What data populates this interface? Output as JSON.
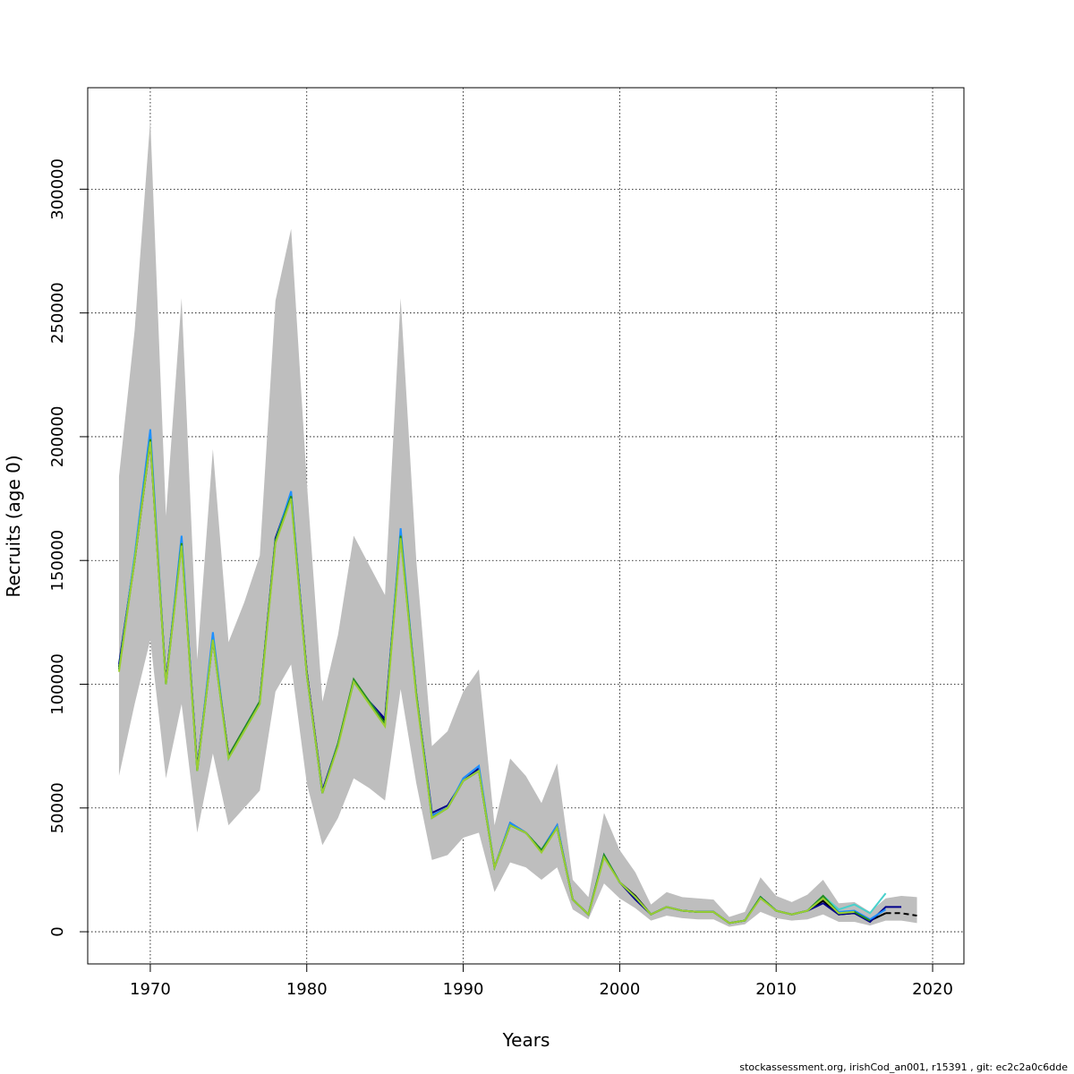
{
  "chart_data": {
    "type": "line",
    "title": "",
    "xlabel": "Years",
    "ylabel": "Recruits (age 0)",
    "xlim": [
      1966,
      2022
    ],
    "ylim": [
      -13000,
      341000
    ],
    "x_ticks": [
      1970,
      1980,
      1990,
      2000,
      2010,
      2020
    ],
    "y_ticks": [
      0,
      50000,
      100000,
      150000,
      200000,
      250000,
      300000
    ],
    "x_tick_labels": [
      "1970",
      "1980",
      "1990",
      "2000",
      "2010",
      "2020"
    ],
    "y_tick_labels": [
      "0",
      "50000",
      "100000",
      "150000",
      "200000",
      "250000",
      "300000"
    ],
    "grid": true,
    "legend": "none",
    "footer": "stockassessment.org, irishCod_an001, r15391 , git: ec2c2a0c6dde",
    "confidence_band": {
      "color": "#bebebe",
      "x": [
        1968,
        1969,
        1970,
        1971,
        1972,
        1973,
        1974,
        1975,
        1976,
        1977,
        1978,
        1979,
        1980,
        1981,
        1982,
        1983,
        1984,
        1985,
        1986,
        1987,
        1988,
        1989,
        1990,
        1991,
        1992,
        1993,
        1994,
        1995,
        1996,
        1997,
        1998,
        1999,
        2000,
        2001,
        2002,
        2003,
        2004,
        2005,
        2006,
        2007,
        2008,
        2009,
        2010,
        2011,
        2012,
        2013,
        2014,
        2015,
        2016,
        2017,
        2018,
        2019
      ],
      "lower": [
        63000,
        92000,
        118000,
        62000,
        92000,
        40000,
        72000,
        43000,
        50000,
        57000,
        97000,
        108000,
        60000,
        35000,
        46000,
        62000,
        58000,
        53000,
        98000,
        60000,
        29000,
        31000,
        38000,
        40000,
        16000,
        28000,
        26000,
        21000,
        26000,
        9000,
        5000,
        19500,
        13500,
        9500,
        4500,
        6500,
        5500,
        5000,
        5000,
        2000,
        3000,
        8000,
        5500,
        4500,
        5000,
        7000,
        4000,
        4000,
        2500,
        4500,
        4500,
        3500
      ],
      "upper": [
        184000,
        243000,
        328000,
        168000,
        256000,
        110000,
        195000,
        117000,
        133000,
        152000,
        255000,
        284000,
        182000,
        93000,
        120000,
        160000,
        148000,
        136000,
        256000,
        150000,
        75000,
        81000,
        97000,
        106000,
        43000,
        70000,
        63000,
        52000,
        68000,
        21000,
        14000,
        48000,
        33000,
        24000,
        11000,
        16000,
        14000,
        13500,
        13000,
        6000,
        8000,
        22000,
        14500,
        12000,
        15000,
        21000,
        11500,
        12000,
        8000,
        13500,
        14500,
        14000
      ]
    },
    "series": [
      {
        "color": "#000000",
        "dashed_from": 2017,
        "x": [
          1968,
          1969,
          1970,
          1971,
          1972,
          1973,
          1974,
          1975,
          1976,
          1977,
          1978,
          1979,
          1980,
          1981,
          1982,
          1983,
          1984,
          1985,
          1986,
          1987,
          1988,
          1989,
          1990,
          1991,
          1992,
          1993,
          1994,
          1995,
          1996,
          1997,
          1998,
          1999,
          2000,
          2001,
          2002,
          2003,
          2004,
          2005,
          2006,
          2007,
          2008,
          2009,
          2010,
          2011,
          2012,
          2013,
          2014,
          2015,
          2016,
          2017,
          2018,
          2019
        ],
        "values": [
          107000,
          150000,
          198000,
          101000,
          157000,
          66000,
          118000,
          71000,
          82000,
          93000,
          158000,
          176000,
          105000,
          56000,
          76000,
          101000,
          93000,
          85000,
          160000,
          96000,
          47000,
          50000,
          61000,
          65000,
          26000,
          43000,
          40000,
          33000,
          42000,
          13000,
          7000,
          31000,
          20000,
          14500,
          7000,
          10000,
          8500,
          8000,
          8000,
          3500,
          4500,
          14000,
          8500,
          7000,
          8500,
          12500,
          7000,
          7500,
          4500,
          7500,
          7500,
          6500
        ]
      },
      {
        "color": "#00008b",
        "x": [
          1968,
          1969,
          1970,
          1971,
          1972,
          1973,
          1974,
          1975,
          1976,
          1977,
          1978,
          1979,
          1980,
          1981,
          1982,
          1983,
          1984,
          1985,
          1986,
          1987,
          1988,
          1989,
          1990,
          1991,
          1992,
          1993,
          1994,
          1995,
          1996,
          1997,
          1998,
          1999,
          2000,
          2001,
          2002,
          2003,
          2004,
          2005,
          2006,
          2007,
          2008,
          2009,
          2010,
          2011,
          2012,
          2013,
          2014,
          2015,
          2016,
          2017,
          2018
        ],
        "values": [
          108000,
          151000,
          199000,
          101000,
          158000,
          66000,
          119000,
          71000,
          82000,
          93000,
          159000,
          177000,
          105000,
          57000,
          76000,
          101000,
          93000,
          86000,
          161000,
          96000,
          48000,
          51000,
          61000,
          66000,
          26000,
          44000,
          40000,
          33000,
          43000,
          13000,
          7000,
          31000,
          20000,
          13000,
          7000,
          10000,
          8500,
          8000,
          8000,
          3500,
          4500,
          14000,
          8500,
          7000,
          8500,
          11500,
          7000,
          7500,
          4000,
          10000,
          10000
        ]
      },
      {
        "color": "#1e90ff",
        "x": [
          1968,
          1969,
          1970,
          1971,
          1972,
          1973,
          1974,
          1975,
          1976,
          1977,
          1978,
          1979,
          1980,
          1981,
          1982,
          1983,
          1984,
          1985,
          1986,
          1987,
          1988,
          1989,
          1990,
          1991,
          1992,
          1993,
          1994,
          1995,
          1996,
          1997,
          1998,
          1999,
          2000,
          2001,
          2002,
          2003,
          2004,
          2005,
          2006,
          2007,
          2008,
          2009,
          2010,
          2011,
          2012,
          2013,
          2014,
          2015,
          2016,
          2017
        ],
        "values": [
          106000,
          152000,
          203000,
          100000,
          160000,
          65000,
          121000,
          70000,
          82000,
          93000,
          158000,
          178000,
          104000,
          56000,
          76000,
          101000,
          93000,
          84000,
          163000,
          96000,
          47000,
          50000,
          62000,
          67000,
          26000,
          44000,
          40000,
          33000,
          43000,
          13000,
          7000,
          31000,
          20000,
          14000,
          7000,
          10000,
          8500,
          8000,
          8000,
          3500,
          4500,
          14000,
          8500,
          7000,
          8500,
          14000,
          8000,
          8500,
          5000,
          9000
        ]
      },
      {
        "color": "#48d1cc",
        "x": [
          1968,
          1969,
          1970,
          1971,
          1972,
          1973,
          1974,
          1975,
          1976,
          1977,
          1978,
          1979,
          1980,
          1981,
          1982,
          1983,
          1984,
          1985,
          1986,
          1987,
          1988,
          1989,
          1990,
          1991,
          1992,
          1993,
          1994,
          1995,
          1996,
          1997,
          1998,
          1999,
          2000,
          2001,
          2002,
          2003,
          2004,
          2005,
          2006,
          2007,
          2008,
          2009,
          2010,
          2011,
          2012,
          2013,
          2014,
          2015,
          2016,
          2017
        ],
        "values": [
          106000,
          151000,
          199000,
          100000,
          157000,
          65000,
          118000,
          70000,
          81000,
          92000,
          158000,
          175000,
          104000,
          56000,
          76000,
          101000,
          93000,
          84000,
          160000,
          96000,
          46000,
          50000,
          61000,
          65000,
          26000,
          43000,
          40000,
          33000,
          42000,
          13000,
          7000,
          31000,
          20000,
          14000,
          7000,
          10000,
          8500,
          8000,
          8000,
          3500,
          4500,
          14000,
          8500,
          7000,
          8500,
          14500,
          9000,
          11000,
          7500,
          15500
        ]
      },
      {
        "color": "#228b22",
        "x": [
          1968,
          1969,
          1970,
          1971,
          1972,
          1973,
          1974,
          1975,
          1976,
          1977,
          1978,
          1979,
          1980,
          1981,
          1982,
          1983,
          1984,
          1985,
          1986,
          1987,
          1988,
          1989,
          1990,
          1991,
          1992,
          1993,
          1994,
          1995,
          1996,
          1997,
          1998,
          1999,
          2000,
          2001,
          2002,
          2003,
          2004,
          2005,
          2006,
          2007,
          2008,
          2009,
          2010,
          2011,
          2012,
          2013,
          2014,
          2015,
          2016
        ],
        "values": [
          106000,
          150000,
          199000,
          100000,
          157000,
          65000,
          118000,
          71000,
          82000,
          93000,
          158000,
          176000,
          104000,
          56000,
          76000,
          102000,
          93000,
          84000,
          160000,
          96000,
          46000,
          50000,
          61000,
          65000,
          26000,
          43000,
          40000,
          33000,
          42000,
          13000,
          7000,
          31000,
          20000,
          14000,
          7000,
          10000,
          8500,
          8000,
          8000,
          3500,
          4500,
          14000,
          8500,
          7000,
          8500,
          14500,
          7500,
          8000,
          4500
        ]
      },
      {
        "color": "#9acd32",
        "x": [
          1968,
          1969,
          1970,
          1971,
          1972,
          1973,
          1974,
          1975,
          1976,
          1977,
          1978,
          1979,
          1980,
          1981,
          1982,
          1983,
          1984,
          1985,
          1986,
          1987,
          1988,
          1989,
          1990,
          1991,
          1992,
          1993,
          1994,
          1995,
          1996,
          1997,
          1998,
          1999,
          2000,
          2001,
          2002,
          2003,
          2004,
          2005,
          2006,
          2007,
          2008,
          2009,
          2010,
          2011,
          2012,
          2013,
          2014,
          2015
        ],
        "values": [
          105000,
          150000,
          198000,
          100000,
          156000,
          65000,
          118000,
          70000,
          81000,
          92000,
          157000,
          175000,
          104000,
          56000,
          75000,
          101000,
          92000,
          83000,
          159000,
          95000,
          46000,
          50000,
          61000,
          65000,
          26000,
          43000,
          40000,
          32000,
          42000,
          13000,
          7000,
          30000,
          20000,
          14000,
          7000,
          10000,
          8500,
          8000,
          8000,
          3500,
          4500,
          13500,
          8500,
          7000,
          8500,
          13500,
          7500,
          8000
        ]
      }
    ]
  }
}
